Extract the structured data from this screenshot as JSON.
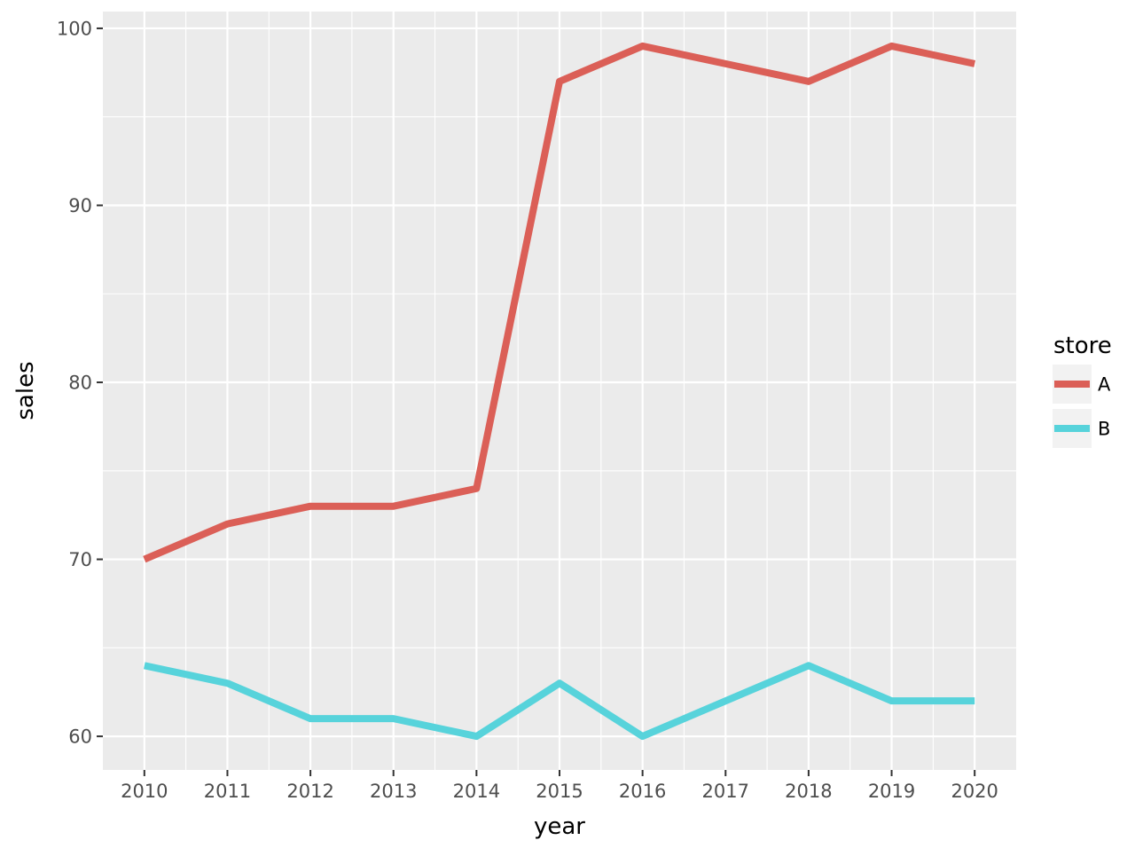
{
  "chart_data": {
    "type": "line",
    "x": [
      2010,
      2011,
      2012,
      2013,
      2014,
      2015,
      2016,
      2017,
      2018,
      2019,
      2020
    ],
    "series": [
      {
        "name": "A",
        "color": "#DB5F57",
        "values": [
          70,
          72,
          73,
          73,
          74,
          97,
          99,
          98,
          97,
          99,
          98
        ]
      },
      {
        "name": "B",
        "color": "#57D3DB",
        "values": [
          64,
          63,
          61,
          61,
          60,
          63,
          60,
          62,
          64,
          62,
          62
        ]
      }
    ],
    "xlabel": "year",
    "ylabel": "sales",
    "xlim": [
      2009.5,
      2020.5
    ],
    "ylim": [
      58.1,
      100.95
    ],
    "x_ticks": [
      "2010",
      "2011",
      "2012",
      "2013",
      "2014",
      "2015",
      "2016",
      "2017",
      "2018",
      "2019",
      "2020"
    ],
    "y_ticks": [
      "60",
      "70",
      "80",
      "90",
      "100"
    ],
    "legend": {
      "title": "store",
      "position": "right"
    },
    "grid": true,
    "panel_background": "#EBEBEB",
    "grid_color": "#FFFFFF"
  }
}
